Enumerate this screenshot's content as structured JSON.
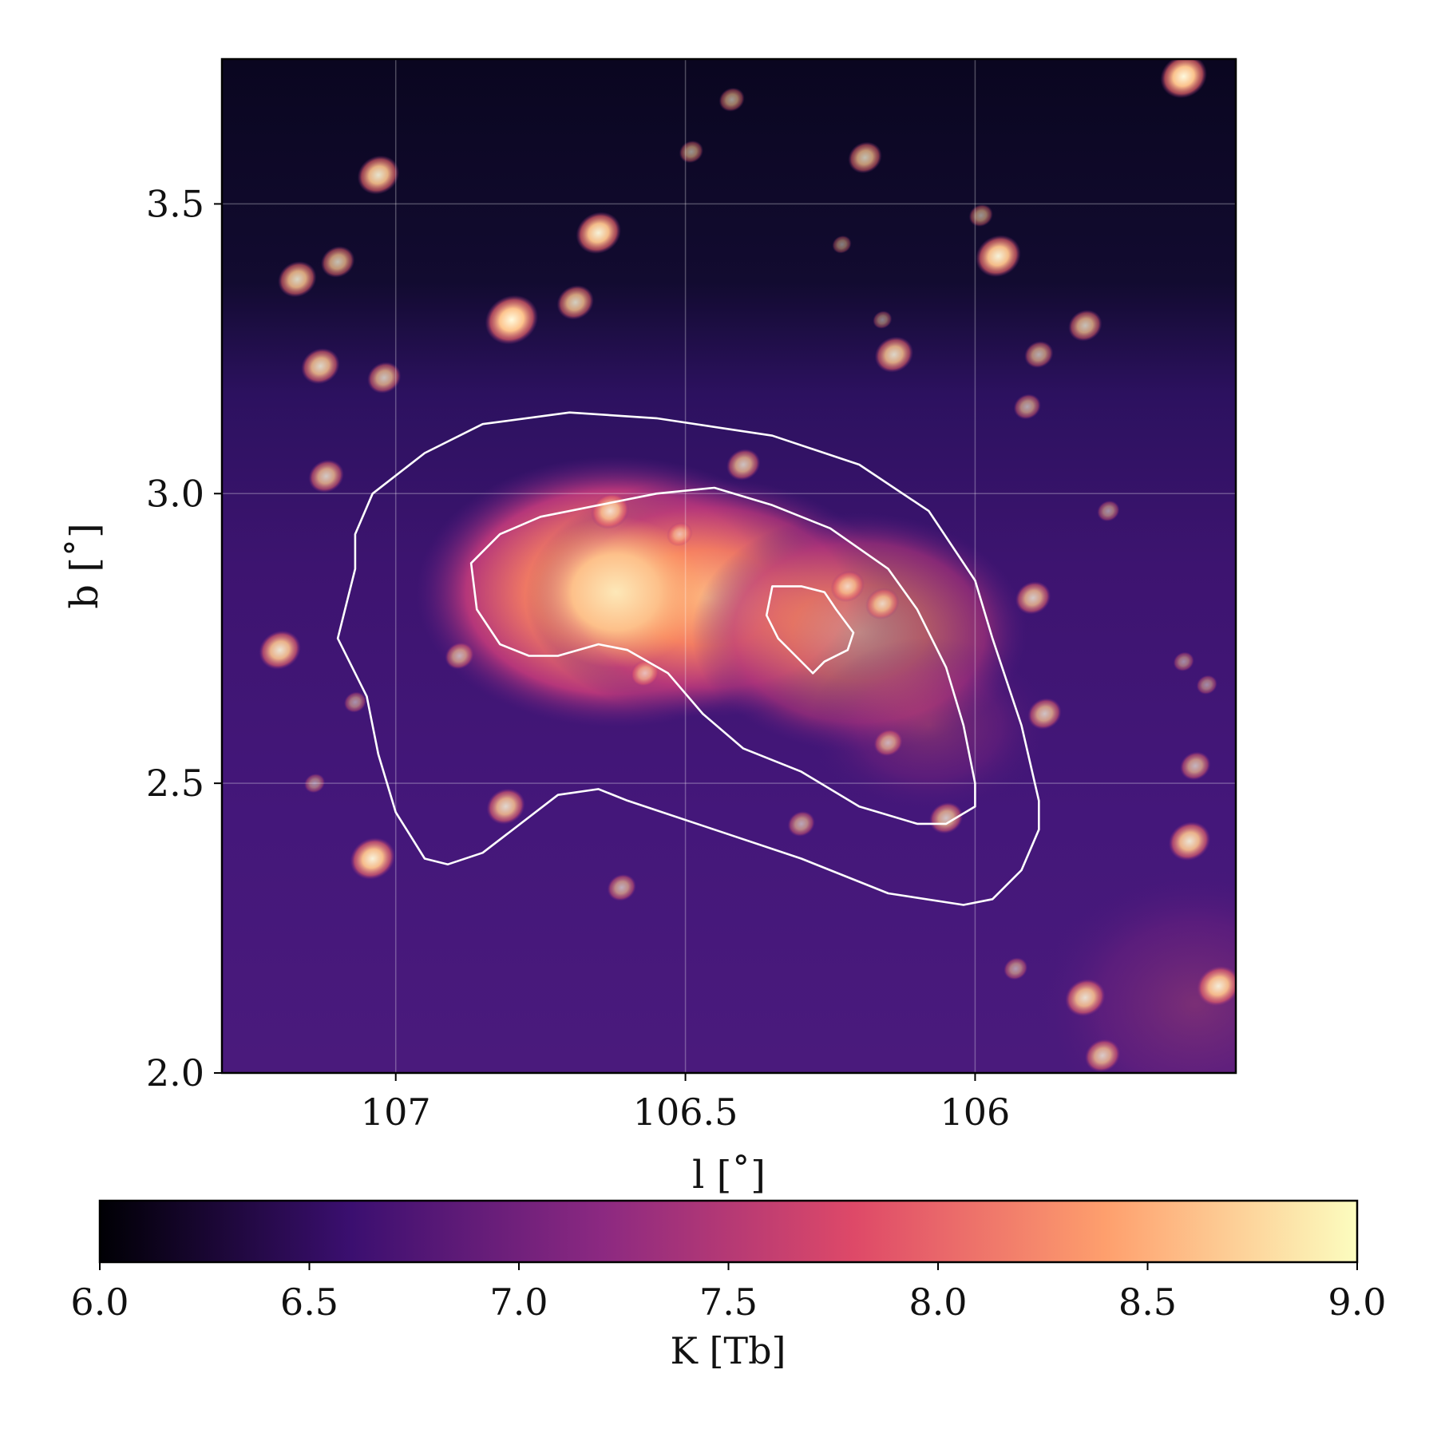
{
  "chart_data": {
    "type": "heatmap",
    "title": "",
    "xlabel": "l [˚]",
    "ylabel": "b [˚]",
    "xlim": [
      107.3,
      105.55
    ],
    "ylim": [
      2.0,
      3.75
    ],
    "x_ticks": [
      {
        "value": 107.0,
        "label": "107"
      },
      {
        "value": 106.5,
        "label": "106.5"
      },
      {
        "value": 106.0,
        "label": "106"
      }
    ],
    "y_ticks": [
      {
        "value": 2.0,
        "label": "2.0"
      },
      {
        "value": 2.5,
        "label": "2.5"
      },
      {
        "value": 3.0,
        "label": "3.0"
      },
      {
        "value": 3.5,
        "label": "3.5"
      }
    ],
    "grid": true,
    "colormap": "magma",
    "colorbar": {
      "label": "K [Tb]",
      "orientation": "horizontal",
      "placement": "bottom",
      "range": [
        6.0,
        9.0
      ],
      "ticks": [
        {
          "value": 6.0,
          "label": "6.0"
        },
        {
          "value": 6.5,
          "label": "6.5"
        },
        {
          "value": 7.0,
          "label": "7.0"
        },
        {
          "value": 7.5,
          "label": "7.5"
        },
        {
          "value": 8.0,
          "label": "8.0"
        },
        {
          "value": 8.5,
          "label": "8.5"
        },
        {
          "value": 9.0,
          "label": "9.0"
        }
      ],
      "stops": [
        "#000004",
        "#3b0f70",
        "#8c2981",
        "#de4968",
        "#fe9f6d",
        "#fcfdbf"
      ]
    },
    "contours": [
      {
        "name": "outer contour",
        "color": "#ffffff",
        "points": [
          [
            107.07,
            2.87
          ],
          [
            107.07,
            2.93
          ],
          [
            107.04,
            3.0
          ],
          [
            106.95,
            3.07
          ],
          [
            106.85,
            3.12
          ],
          [
            106.7,
            3.14
          ],
          [
            106.55,
            3.13
          ],
          [
            106.35,
            3.1
          ],
          [
            106.2,
            3.05
          ],
          [
            106.08,
            2.97
          ],
          [
            106.0,
            2.85
          ],
          [
            105.97,
            2.75
          ],
          [
            105.92,
            2.6
          ],
          [
            105.89,
            2.47
          ],
          [
            105.89,
            2.42
          ],
          [
            105.92,
            2.35
          ],
          [
            105.97,
            2.3
          ],
          [
            106.02,
            2.29
          ],
          [
            106.15,
            2.31
          ],
          [
            106.3,
            2.37
          ],
          [
            106.45,
            2.42
          ],
          [
            106.6,
            2.47
          ],
          [
            106.65,
            2.49
          ],
          [
            106.72,
            2.48
          ],
          [
            106.85,
            2.38
          ],
          [
            106.91,
            2.36
          ],
          [
            106.95,
            2.37
          ],
          [
            107.0,
            2.45
          ],
          [
            107.03,
            2.55
          ],
          [
            107.05,
            2.65
          ],
          [
            107.1,
            2.75
          ]
        ]
      },
      {
        "name": "middle contour",
        "color": "#ffffff",
        "points": [
          [
            106.87,
            2.88
          ],
          [
            106.82,
            2.93
          ],
          [
            106.75,
            2.96
          ],
          [
            106.65,
            2.98
          ],
          [
            106.55,
            3.0
          ],
          [
            106.45,
            3.01
          ],
          [
            106.35,
            2.98
          ],
          [
            106.25,
            2.94
          ],
          [
            106.15,
            2.87
          ],
          [
            106.1,
            2.8
          ],
          [
            106.05,
            2.7
          ],
          [
            106.02,
            2.6
          ],
          [
            106.0,
            2.5
          ],
          [
            106.0,
            2.46
          ],
          [
            106.05,
            2.43
          ],
          [
            106.1,
            2.43
          ],
          [
            106.2,
            2.46
          ],
          [
            106.3,
            2.52
          ],
          [
            106.4,
            2.56
          ],
          [
            106.47,
            2.62
          ],
          [
            106.53,
            2.69
          ],
          [
            106.6,
            2.73
          ],
          [
            106.65,
            2.74
          ],
          [
            106.72,
            2.72
          ],
          [
            106.77,
            2.72
          ],
          [
            106.82,
            2.74
          ],
          [
            106.86,
            2.8
          ]
        ]
      },
      {
        "name": "inner contour",
        "color": "#ffffff",
        "points": [
          [
            106.35,
            2.84
          ],
          [
            106.3,
            2.84
          ],
          [
            106.26,
            2.83
          ],
          [
            106.24,
            2.8
          ],
          [
            106.21,
            2.76
          ],
          [
            106.22,
            2.73
          ],
          [
            106.26,
            2.71
          ],
          [
            106.28,
            2.69
          ],
          [
            106.31,
            2.72
          ],
          [
            106.34,
            2.75
          ],
          [
            106.36,
            2.79
          ]
        ]
      }
    ],
    "point_sources": [
      {
        "l": 106.8,
        "b": 3.3,
        "value": 8.8
      },
      {
        "l": 106.4,
        "b": 3.05,
        "value": 7.6
      },
      {
        "l": 107.17,
        "b": 3.37,
        "value": 7.9
      },
      {
        "l": 107.1,
        "b": 3.4,
        "value": 7.6
      },
      {
        "l": 107.03,
        "b": 3.55,
        "value": 8.1
      },
      {
        "l": 106.65,
        "b": 3.45,
        "value": 8.3
      },
      {
        "l": 106.69,
        "b": 3.33,
        "value": 7.8
      },
      {
        "l": 107.13,
        "b": 3.22,
        "value": 7.9
      },
      {
        "l": 107.02,
        "b": 3.2,
        "value": 7.6
      },
      {
        "l": 107.12,
        "b": 3.03,
        "value": 7.7
      },
      {
        "l": 106.42,
        "b": 3.68,
        "value": 7.1
      },
      {
        "l": 106.49,
        "b": 3.59,
        "value": 7.0
      },
      {
        "l": 106.19,
        "b": 3.58,
        "value": 7.6
      },
      {
        "l": 105.99,
        "b": 3.48,
        "value": 7.0
      },
      {
        "l": 105.96,
        "b": 3.41,
        "value": 8.3
      },
      {
        "l": 106.14,
        "b": 3.24,
        "value": 7.9
      },
      {
        "l": 105.89,
        "b": 3.24,
        "value": 7.3
      },
      {
        "l": 105.81,
        "b": 3.29,
        "value": 7.6
      },
      {
        "l": 105.91,
        "b": 3.15,
        "value": 7.2
      },
      {
        "l": 105.64,
        "b": 3.72,
        "value": 8.4
      },
      {
        "l": 106.23,
        "b": 3.43,
        "value": 6.7
      },
      {
        "l": 106.16,
        "b": 3.3,
        "value": 6.7
      },
      {
        "l": 106.16,
        "b": 2.81,
        "value": 7.6
      },
      {
        "l": 106.63,
        "b": 2.97,
        "value": 7.9
      },
      {
        "l": 106.22,
        "b": 2.84,
        "value": 7.6
      },
      {
        "l": 105.9,
        "b": 2.82,
        "value": 7.7
      },
      {
        "l": 105.88,
        "b": 2.62,
        "value": 7.6
      },
      {
        "l": 107.2,
        "b": 2.73,
        "value": 8.1
      },
      {
        "l": 106.89,
        "b": 2.72,
        "value": 7.3
      },
      {
        "l": 106.57,
        "b": 2.69,
        "value": 7.3
      },
      {
        "l": 106.81,
        "b": 2.46,
        "value": 7.9
      },
      {
        "l": 106.05,
        "b": 2.44,
        "value": 7.6
      },
      {
        "l": 106.3,
        "b": 2.43,
        "value": 7.2
      },
      {
        "l": 106.61,
        "b": 2.32,
        "value": 7.3
      },
      {
        "l": 107.04,
        "b": 2.37,
        "value": 8.3
      },
      {
        "l": 105.63,
        "b": 2.4,
        "value": 8.1
      },
      {
        "l": 105.62,
        "b": 2.53,
        "value": 7.4
      },
      {
        "l": 105.81,
        "b": 2.13,
        "value": 8.0
      },
      {
        "l": 105.58,
        "b": 2.15,
        "value": 8.2
      },
      {
        "l": 105.78,
        "b": 2.03,
        "value": 7.7
      },
      {
        "l": 105.93,
        "b": 2.18,
        "value": 7.0
      },
      {
        "l": 105.64,
        "b": 2.71,
        "value": 6.8
      },
      {
        "l": 105.6,
        "b": 2.67,
        "value": 6.8
      },
      {
        "l": 107.07,
        "b": 2.64,
        "value": 6.9
      },
      {
        "l": 107.14,
        "b": 2.5,
        "value": 6.8
      },
      {
        "l": 106.51,
        "b": 2.93,
        "value": 7.1
      },
      {
        "l": 106.15,
        "b": 2.57,
        "value": 7.3
      },
      {
        "l": 105.77,
        "b": 2.97,
        "value": 6.9
      }
    ],
    "regions": [
      {
        "name": "bright core",
        "l": 106.62,
        "b": 2.83,
        "value": 8.6
      },
      {
        "name": "core extension",
        "l": 106.46,
        "b": 2.82,
        "value": 8.0
      },
      {
        "name": "emission shelf",
        "l": 106.2,
        "b": 2.76,
        "value": 7.7
      },
      {
        "name": "south-east knot",
        "l": 106.08,
        "b": 2.6,
        "value": 7.3
      },
      {
        "name": "lower-right glow",
        "l": 105.62,
        "b": 2.12,
        "value": 7.2
      }
    ]
  }
}
